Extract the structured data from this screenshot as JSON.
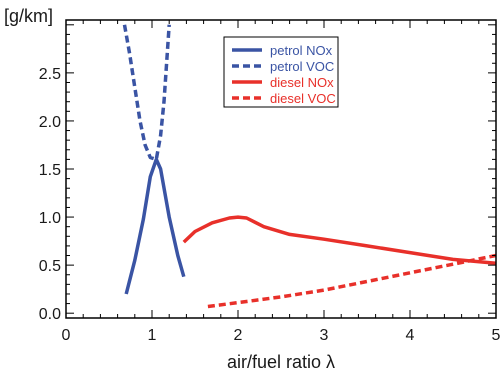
{
  "chart_data": {
    "type": "line",
    "ylabel": "[g/km]",
    "xlabel": "air/fuel ratio λ",
    "xlim": [
      0,
      5
    ],
    "ylim": [
      -0.05,
      3.05
    ],
    "x_ticks": [
      0,
      1,
      2,
      3,
      4,
      5
    ],
    "x_tick_labels": [
      "0",
      "1",
      "2",
      "3",
      "4",
      "5"
    ],
    "y_ticks": [
      0.0,
      0.5,
      1.0,
      1.5,
      2.0,
      2.5
    ],
    "y_tick_labels": [
      "0.0",
      "0.5",
      "1.0",
      "1.5",
      "2.0",
      "2.5"
    ],
    "grid": false,
    "legend_position": "top-right",
    "series": [
      {
        "name": "petrol NOx",
        "color": "#3a54a4",
        "style": "solid",
        "x": [
          0.7,
          0.8,
          0.9,
          0.98,
          1.05,
          1.1,
          1.2,
          1.3,
          1.37
        ],
        "y": [
          0.2,
          0.55,
          0.98,
          1.42,
          1.6,
          1.5,
          1.0,
          0.6,
          0.38
        ]
      },
      {
        "name": "petrol VOC",
        "color": "#3a54a4",
        "style": "dashed",
        "x": [
          0.68,
          0.74,
          0.8,
          0.86,
          0.92,
          0.98,
          1.05,
          1.1,
          1.14,
          1.17,
          1.2
        ],
        "y": [
          3.0,
          2.7,
          2.35,
          2.0,
          1.75,
          1.62,
          1.6,
          1.85,
          2.2,
          2.6,
          3.0
        ]
      },
      {
        "name": "diesel NOx",
        "color": "#e8302a",
        "style": "solid",
        "x": [
          1.37,
          1.5,
          1.7,
          1.9,
          2.0,
          2.1,
          2.3,
          2.6,
          3.0,
          3.5,
          4.0,
          4.5,
          5.0
        ],
        "y": [
          0.74,
          0.85,
          0.94,
          0.99,
          1.0,
          0.99,
          0.9,
          0.82,
          0.77,
          0.7,
          0.63,
          0.56,
          0.52
        ]
      },
      {
        "name": "diesel VOC",
        "color": "#e8302a",
        "style": "dashed",
        "x": [
          1.65,
          2.0,
          2.5,
          3.0,
          3.5,
          4.0,
          4.5,
          5.0
        ],
        "y": [
          0.07,
          0.11,
          0.17,
          0.24,
          0.33,
          0.42,
          0.51,
          0.6
        ]
      }
    ]
  }
}
